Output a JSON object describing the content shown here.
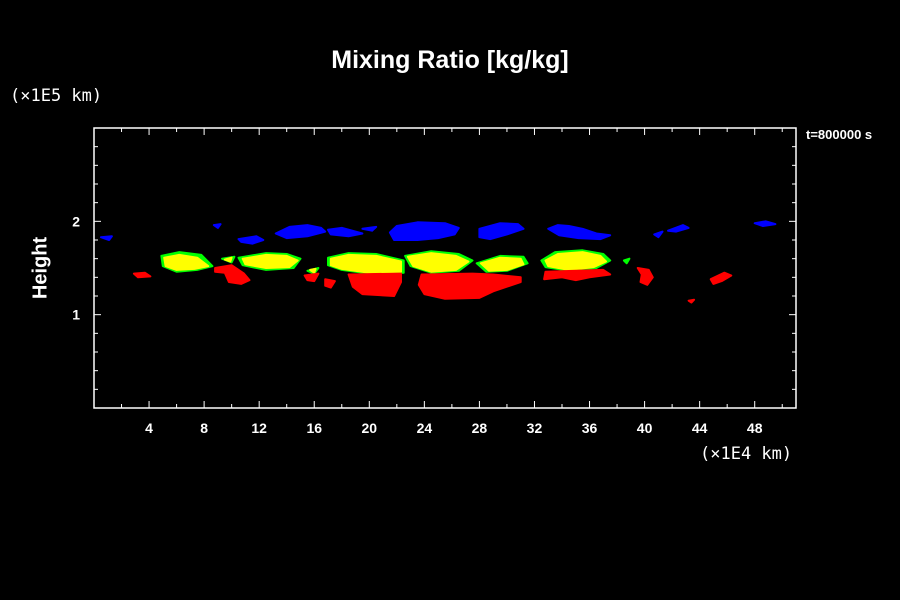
{
  "chart_data": {
    "type": "heatmap",
    "title": "Mixing Ratio [kg/kg]",
    "ylabel": "Height",
    "y_unit": "(×1E5 km)",
    "x_unit": "(×1E4 km)",
    "time_label": "t=800000 s",
    "xlim": [
      0,
      51
    ],
    "ylim": [
      0,
      3
    ],
    "x_ticks": [
      4,
      8,
      12,
      16,
      20,
      24,
      28,
      32,
      36,
      40,
      44,
      48
    ],
    "y_ticks": [
      1,
      2
    ],
    "colors": {
      "blue": "#0000ff",
      "yellow": "#ffff00",
      "green": "#00ff00",
      "red": "#ff0000"
    },
    "regions": [
      {
        "color": "blue",
        "pts": [
          [
            0.5,
            1.83
          ],
          [
            1.3,
            1.84
          ],
          [
            1.1,
            1.8
          ]
        ]
      },
      {
        "color": "blue",
        "pts": [
          [
            8.7,
            1.96
          ],
          [
            9.2,
            1.97
          ],
          [
            9.0,
            1.93
          ]
        ]
      },
      {
        "color": "blue",
        "pts": [
          [
            10.5,
            1.81
          ],
          [
            11.8,
            1.84
          ],
          [
            12.3,
            1.8
          ],
          [
            11.5,
            1.76
          ],
          [
            10.7,
            1.78
          ]
        ]
      },
      {
        "color": "blue",
        "pts": [
          [
            13.2,
            1.87
          ],
          [
            14.2,
            1.94
          ],
          [
            15.5,
            1.96
          ],
          [
            16.5,
            1.93
          ],
          [
            16.8,
            1.89
          ],
          [
            15.5,
            1.84
          ],
          [
            14.0,
            1.82
          ]
        ]
      },
      {
        "color": "blue",
        "pts": [
          [
            17.0,
            1.91
          ],
          [
            18.0,
            1.93
          ],
          [
            19.5,
            1.87
          ],
          [
            18.5,
            1.84
          ],
          [
            17.2,
            1.86
          ]
        ]
      },
      {
        "color": "blue",
        "pts": [
          [
            19.5,
            1.92
          ],
          [
            20.5,
            1.94
          ],
          [
            20.2,
            1.9
          ]
        ]
      },
      {
        "color": "blue",
        "pts": [
          [
            21.8,
            1.8
          ],
          [
            21.5,
            1.88
          ],
          [
            22.0,
            1.95
          ],
          [
            23.5,
            1.99
          ],
          [
            25.5,
            1.98
          ],
          [
            26.5,
            1.93
          ],
          [
            26.2,
            1.86
          ],
          [
            25.0,
            1.82
          ],
          [
            23.5,
            1.8
          ]
        ]
      },
      {
        "color": "blue",
        "pts": [
          [
            28.0,
            1.83
          ],
          [
            28.0,
            1.92
          ],
          [
            29.5,
            1.98
          ],
          [
            30.8,
            1.97
          ],
          [
            31.2,
            1.92
          ],
          [
            30.0,
            1.86
          ],
          [
            28.8,
            1.81
          ]
        ]
      },
      {
        "color": "blue",
        "pts": [
          [
            33.0,
            1.92
          ],
          [
            33.7,
            1.96
          ],
          [
            34.5,
            1.95
          ],
          [
            35.5,
            1.92
          ],
          [
            36.5,
            1.87
          ],
          [
            37.5,
            1.85
          ],
          [
            36.8,
            1.81
          ],
          [
            35.2,
            1.82
          ],
          [
            33.8,
            1.85
          ]
        ]
      },
      {
        "color": "blue",
        "pts": [
          [
            40.7,
            1.86
          ],
          [
            41.3,
            1.89
          ],
          [
            41.0,
            1.83
          ]
        ]
      },
      {
        "color": "blue",
        "pts": [
          [
            41.7,
            1.9
          ],
          [
            42.8,
            1.96
          ],
          [
            43.2,
            1.93
          ],
          [
            42.3,
            1.89
          ]
        ]
      },
      {
        "color": "blue",
        "pts": [
          [
            48.0,
            1.98
          ],
          [
            48.8,
            2.0
          ],
          [
            49.5,
            1.97
          ],
          [
            48.6,
            1.95
          ]
        ]
      },
      {
        "color": "green",
        "pts": [
          [
            4.9,
            1.63
          ],
          [
            6.2,
            1.67
          ],
          [
            7.8,
            1.64
          ],
          [
            8.6,
            1.52
          ],
          [
            7.5,
            1.48
          ],
          [
            6.0,
            1.46
          ],
          [
            5.0,
            1.52
          ]
        ]
      },
      {
        "color": "green",
        "pts": [
          [
            9.3,
            1.6
          ],
          [
            10.2,
            1.62
          ],
          [
            10.0,
            1.56
          ]
        ]
      },
      {
        "color": "green",
        "pts": [
          [
            10.5,
            1.61
          ],
          [
            12.5,
            1.66
          ],
          [
            14.0,
            1.65
          ],
          [
            15.0,
            1.6
          ],
          [
            14.5,
            1.5
          ],
          [
            12.5,
            1.48
          ],
          [
            10.8,
            1.53
          ]
        ]
      },
      {
        "color": "green",
        "pts": [
          [
            15.5,
            1.47
          ],
          [
            16.3,
            1.5
          ],
          [
            16.0,
            1.44
          ]
        ]
      },
      {
        "color": "green",
        "pts": [
          [
            17.0,
            1.61
          ],
          [
            18.5,
            1.66
          ],
          [
            20.5,
            1.65
          ],
          [
            22.5,
            1.58
          ],
          [
            22.5,
            1.45
          ],
          [
            20.0,
            1.44
          ],
          [
            18.0,
            1.48
          ],
          [
            17.0,
            1.53
          ]
        ]
      },
      {
        "color": "green",
        "pts": [
          [
            22.6,
            1.63
          ],
          [
            24.5,
            1.68
          ],
          [
            26.5,
            1.65
          ],
          [
            27.5,
            1.58
          ],
          [
            26.5,
            1.47
          ],
          [
            24.5,
            1.45
          ],
          [
            23.0,
            1.52
          ]
        ]
      },
      {
        "color": "green",
        "pts": [
          [
            27.8,
            1.55
          ],
          [
            29.5,
            1.63
          ],
          [
            31.2,
            1.62
          ],
          [
            31.5,
            1.55
          ],
          [
            30.0,
            1.47
          ],
          [
            28.5,
            1.46
          ]
        ]
      },
      {
        "color": "green",
        "pts": [
          [
            32.5,
            1.58
          ],
          [
            33.5,
            1.67
          ],
          [
            35.5,
            1.69
          ],
          [
            37.0,
            1.65
          ],
          [
            37.5,
            1.58
          ],
          [
            36.5,
            1.5
          ],
          [
            34.5,
            1.47
          ],
          [
            32.8,
            1.51
          ]
        ]
      },
      {
        "color": "green",
        "pts": [
          [
            38.5,
            1.58
          ],
          [
            38.9,
            1.6
          ],
          [
            38.7,
            1.55
          ]
        ]
      },
      {
        "color": "yellow",
        "pts": [
          [
            5.1,
            1.61
          ],
          [
            6.2,
            1.64
          ],
          [
            7.5,
            1.61
          ],
          [
            8.3,
            1.52
          ],
          [
            7.3,
            1.49
          ],
          [
            6.0,
            1.48
          ],
          [
            5.2,
            1.52
          ]
        ]
      },
      {
        "color": "yellow",
        "pts": [
          [
            9.5,
            1.59
          ],
          [
            10.0,
            1.61
          ],
          [
            9.9,
            1.57
          ]
        ]
      },
      {
        "color": "yellow",
        "pts": [
          [
            10.8,
            1.6
          ],
          [
            12.5,
            1.64
          ],
          [
            14.0,
            1.63
          ],
          [
            14.8,
            1.58
          ],
          [
            14.2,
            1.51
          ],
          [
            12.5,
            1.5
          ],
          [
            11.0,
            1.54
          ]
        ]
      },
      {
        "color": "yellow",
        "pts": [
          [
            15.7,
            1.48
          ],
          [
            16.1,
            1.49
          ],
          [
            16.0,
            1.45
          ]
        ]
      },
      {
        "color": "yellow",
        "pts": [
          [
            17.2,
            1.6
          ],
          [
            18.5,
            1.64
          ],
          [
            20.5,
            1.63
          ],
          [
            22.3,
            1.57
          ],
          [
            22.3,
            1.46
          ],
          [
            20.0,
            1.45
          ],
          [
            18.0,
            1.49
          ],
          [
            17.2,
            1.53
          ]
        ]
      },
      {
        "color": "yellow",
        "pts": [
          [
            22.8,
            1.62
          ],
          [
            24.5,
            1.66
          ],
          [
            26.3,
            1.63
          ],
          [
            27.2,
            1.57
          ],
          [
            26.3,
            1.48
          ],
          [
            24.5,
            1.46
          ],
          [
            23.2,
            1.52
          ]
        ]
      },
      {
        "color": "yellow",
        "pts": [
          [
            28.1,
            1.55
          ],
          [
            29.5,
            1.61
          ],
          [
            31.0,
            1.6
          ],
          [
            31.2,
            1.54
          ],
          [
            30.0,
            1.48
          ],
          [
            28.7,
            1.47
          ]
        ]
      },
      {
        "color": "yellow",
        "pts": [
          [
            32.8,
            1.58
          ],
          [
            33.7,
            1.65
          ],
          [
            35.5,
            1.67
          ],
          [
            36.8,
            1.63
          ],
          [
            37.2,
            1.57
          ],
          [
            36.3,
            1.51
          ],
          [
            34.5,
            1.48
          ],
          [
            33.0,
            1.52
          ]
        ]
      },
      {
        "color": "red",
        "pts": [
          [
            2.9,
            1.44
          ],
          [
            3.7,
            1.45
          ],
          [
            4.1,
            1.41
          ],
          [
            3.2,
            1.4
          ]
        ]
      },
      {
        "color": "red",
        "pts": [
          [
            8.8,
            1.5
          ],
          [
            10.0,
            1.53
          ],
          [
            10.9,
            1.44
          ],
          [
            11.3,
            1.37
          ],
          [
            10.7,
            1.33
          ],
          [
            9.8,
            1.35
          ],
          [
            9.5,
            1.45
          ],
          [
            8.8,
            1.46
          ]
        ]
      },
      {
        "color": "red",
        "pts": [
          [
            15.3,
            1.42
          ],
          [
            16.3,
            1.44
          ],
          [
            16.0,
            1.36
          ],
          [
            15.5,
            1.37
          ]
        ]
      },
      {
        "color": "red",
        "pts": [
          [
            16.8,
            1.38
          ],
          [
            17.5,
            1.36
          ],
          [
            17.2,
            1.29
          ],
          [
            16.8,
            1.31
          ]
        ]
      },
      {
        "color": "red",
        "pts": [
          [
            18.5,
            1.43
          ],
          [
            22.3,
            1.44
          ],
          [
            22.3,
            1.35
          ],
          [
            21.8,
            1.2
          ],
          [
            19.5,
            1.22
          ],
          [
            18.8,
            1.3
          ]
        ]
      },
      {
        "color": "red",
        "pts": [
          [
            23.8,
            1.43
          ],
          [
            27.5,
            1.44
          ],
          [
            29.0,
            1.43
          ],
          [
            31.0,
            1.4
          ],
          [
            31.0,
            1.35
          ],
          [
            29.0,
            1.25
          ],
          [
            28.0,
            1.18
          ],
          [
            25.5,
            1.17
          ],
          [
            24.0,
            1.22
          ],
          [
            23.6,
            1.32
          ]
        ]
      },
      {
        "color": "red",
        "pts": [
          [
            32.8,
            1.46
          ],
          [
            37.0,
            1.48
          ],
          [
            37.5,
            1.43
          ],
          [
            36.0,
            1.4
          ],
          [
            35.0,
            1.37
          ],
          [
            34.0,
            1.4
          ],
          [
            32.7,
            1.38
          ]
        ]
      },
      {
        "color": "red",
        "pts": [
          [
            39.5,
            1.5
          ],
          [
            40.3,
            1.48
          ],
          [
            40.6,
            1.4
          ],
          [
            40.2,
            1.32
          ],
          [
            39.7,
            1.35
          ],
          [
            39.8,
            1.43
          ]
        ]
      },
      {
        "color": "red",
        "pts": [
          [
            43.2,
            1.15
          ],
          [
            43.6,
            1.16
          ],
          [
            43.4,
            1.13
          ]
        ]
      },
      {
        "color": "red",
        "pts": [
          [
            44.8,
            1.38
          ],
          [
            45.8,
            1.45
          ],
          [
            46.3,
            1.42
          ],
          [
            45.6,
            1.36
          ],
          [
            45.0,
            1.33
          ]
        ]
      }
    ]
  }
}
